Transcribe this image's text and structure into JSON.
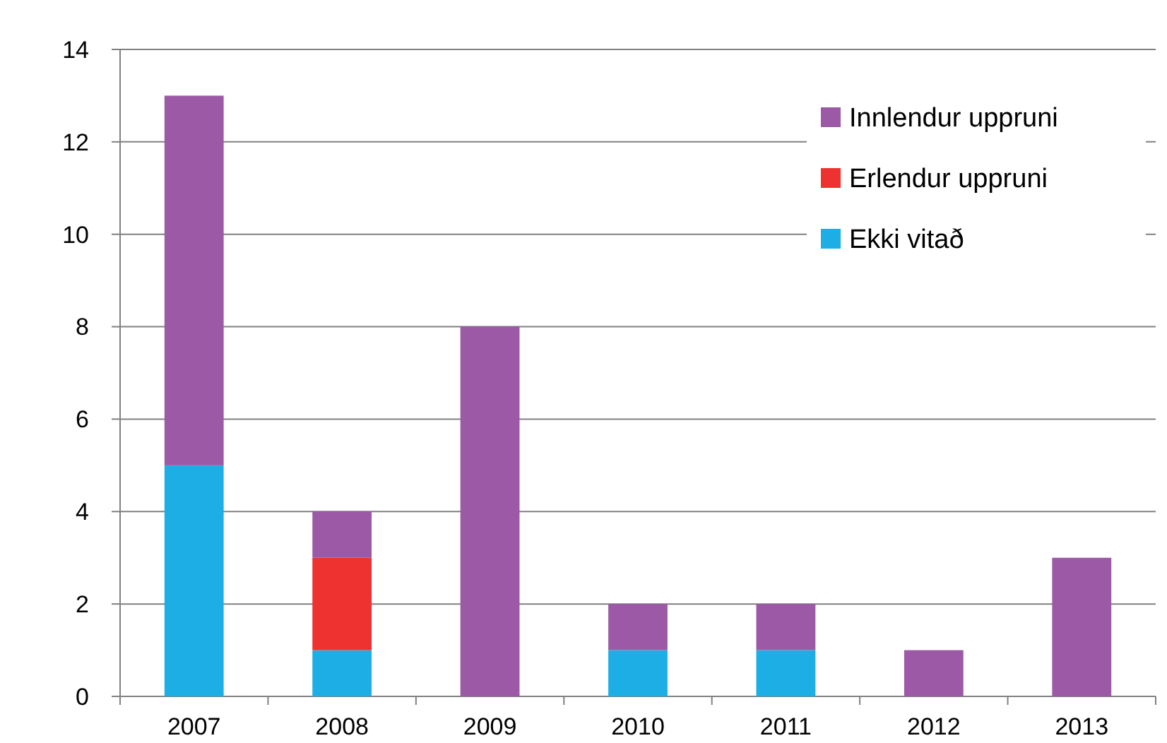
{
  "chart_data": {
    "type": "bar",
    "stacked": true,
    "categories": [
      "2007",
      "2008",
      "2009",
      "2010",
      "2011",
      "2012",
      "2013"
    ],
    "series": [
      {
        "name": "Ekki vitað",
        "color": "#1eaee6",
        "values": [
          5,
          1,
          0,
          1,
          1,
          0,
          0
        ]
      },
      {
        "name": "Erlendur uppruni",
        "color": "#ee3230",
        "values": [
          0,
          2,
          0,
          0,
          0,
          0,
          0
        ]
      },
      {
        "name": "Innlendur uppruni",
        "color": "#9b59a6",
        "values": [
          8,
          1,
          8,
          1,
          1,
          1,
          3
        ]
      }
    ],
    "ylim": [
      0,
      14
    ],
    "yticks": [
      0,
      2,
      4,
      6,
      8,
      10,
      12,
      14
    ],
    "grid": "y",
    "legend": "top right"
  }
}
